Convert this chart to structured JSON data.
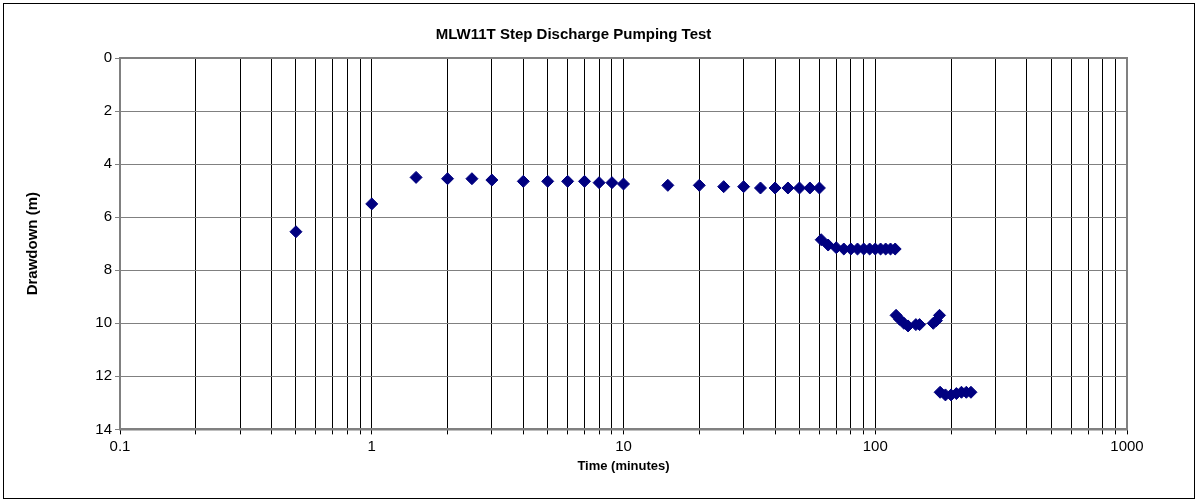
{
  "chart_data": {
    "type": "scatter",
    "title": "MLW11T Step Discharge Pumping Test",
    "xlabel": "Time (minutes)",
    "ylabel": "Drawdown (m)",
    "log": "x",
    "marker": "diamond",
    "grid": true,
    "legend": false,
    "xlim": [
      0.1,
      1000
    ],
    "xticks": [
      0.1,
      {
        "value": 0.2,
        "label": null
      },
      {
        "value": 0.3,
        "label": null
      },
      {
        "value": 0.4,
        "label": null
      },
      {
        "value": 0.5,
        "label": null
      },
      {
        "value": 0.6,
        "label": null
      },
      {
        "value": 0.7,
        "label": null
      },
      {
        "value": 0.8,
        "label": null
      },
      {
        "value": 0.9,
        "label": null
      },
      1,
      {
        "value": 2,
        "label": null
      },
      {
        "value": 3,
        "label": null
      },
      {
        "value": 4,
        "label": null
      },
      {
        "value": 5,
        "label": null
      },
      {
        "value": 6,
        "label": null
      },
      {
        "value": 7,
        "label": null
      },
      {
        "value": 8,
        "label": null
      },
      {
        "value": 9,
        "label": null
      },
      10,
      {
        "value": 20,
        "label": null
      },
      {
        "value": 30,
        "label": null
      },
      {
        "value": 40,
        "label": null
      },
      {
        "value": 50,
        "label": null
      },
      {
        "value": 60,
        "label": null
      },
      {
        "value": 70,
        "label": null
      },
      {
        "value": 80,
        "label": null
      },
      {
        "value": 90,
        "label": null
      },
      100,
      {
        "value": 200,
        "label": null
      },
      {
        "value": 300,
        "label": null
      },
      {
        "value": 400,
        "label": null
      },
      {
        "value": 500,
        "label": null
      },
      {
        "value": 600,
        "label": null
      },
      {
        "value": 700,
        "label": null
      },
      {
        "value": 800,
        "label": null
      },
      {
        "value": 900,
        "label": null
      },
      1000
    ],
    "ylim": [
      14,
      0
    ],
    "yticks": [
      0,
      2,
      4,
      6,
      8,
      10,
      12,
      14
    ],
    "series": [
      {
        "color": "#000080",
        "x": [
          0.5,
          1,
          1.5,
          2,
          2.5,
          3,
          4,
          5,
          6,
          7,
          8,
          9,
          10,
          15,
          20,
          25,
          30,
          35,
          40,
          45,
          50,
          55,
          60,
          61,
          65,
          70,
          75,
          80,
          85,
          90,
          95,
          100,
          105,
          110,
          115,
          120,
          121,
          125,
          130,
          135,
          145,
          150,
          170,
          175,
          180,
          181,
          190,
          200,
          210,
          220,
          230,
          240
        ],
        "values": [
          6.55,
          5.5,
          4.5,
          4.55,
          4.55,
          4.6,
          4.65,
          4.65,
          4.65,
          4.65,
          4.7,
          4.7,
          4.75,
          4.8,
          4.8,
          4.85,
          4.85,
          4.9,
          4.9,
          4.9,
          4.9,
          4.9,
          4.9,
          6.85,
          7.05,
          7.15,
          7.2,
          7.2,
          7.2,
          7.2,
          7.2,
          7.2,
          7.2,
          7.2,
          7.2,
          7.2,
          9.7,
          9.85,
          10.0,
          10.1,
          10.05,
          10.05,
          10.0,
          9.9,
          9.7,
          12.6,
          12.7,
          12.7,
          12.65,
          12.6,
          12.6,
          12.6
        ]
      }
    ]
  }
}
